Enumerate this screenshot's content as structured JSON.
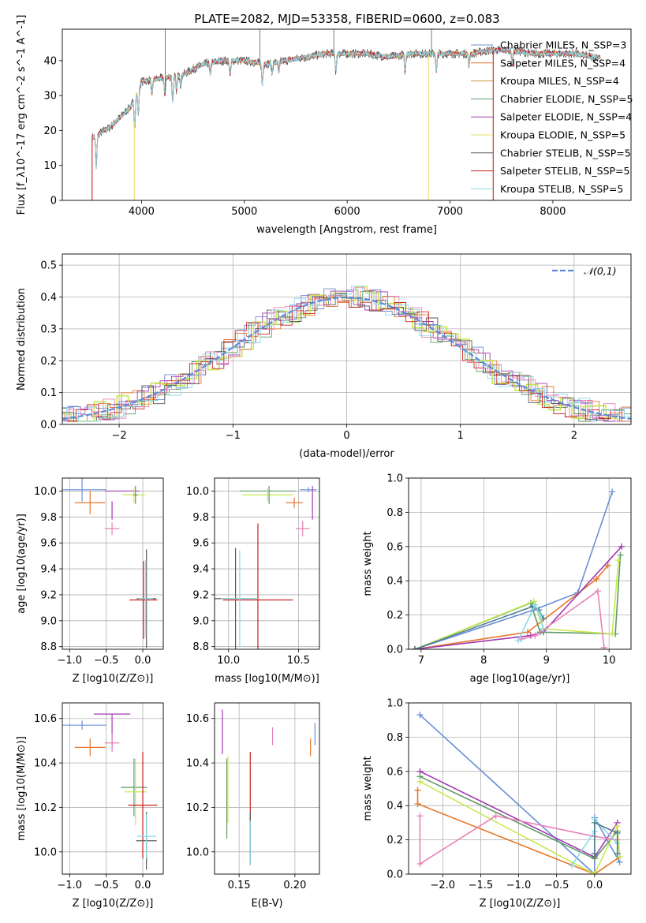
{
  "title": "PLATE=2082, MJD=53358, FIBERID=0600, z=0.083",
  "colors": {
    "Chabrier MILES": "#6b8fd6",
    "Salpeter MILES": "#e8772a",
    "Kroupa MILES": "#c49a3c",
    "Chabrier ELODIE": "#5f9a66",
    "Salpeter ELODIE": "#a03ab0",
    "Kroupa ELODIE": "#e6e070",
    "Chabrier STELIB": "#5a5a5a",
    "Salpeter STELIB": "#cc2020",
    "Kroupa STELIB": "#88d8e8",
    "Extra pink": "#e880b8",
    "Extra lime": "#c8e850",
    "Extra steel": "#4f7f8f",
    "Normal curve": "#5b8bd8"
  },
  "chart_data": [
    {
      "type": "line",
      "id": "spectrum",
      "xlabel": "wavelength [Angstrom, rest frame]",
      "ylabel": "Flux [f_λ10^-17 erg cm^-2 s^-1 A^-1]",
      "xlim": [
        3230,
        8760
      ],
      "ylim": [
        0,
        49
      ],
      "xticks": [
        4000,
        5000,
        6000,
        7000,
        8000
      ],
      "yticks": [
        0,
        10,
        20,
        30,
        40
      ],
      "grid": false,
      "legend_position": "right",
      "legend": [
        {
          "label": "Chabrier MILES, N_SSP=3",
          "color": "#6b8fd6"
        },
        {
          "label": "Salpeter MILES, N_SSP=4",
          "color": "#e8772a"
        },
        {
          "label": "Kroupa MILES, N_SSP=4",
          "color": "#c49a3c"
        },
        {
          "label": "Chabrier ELODIE, N_SSP=5",
          "color": "#5f9a66"
        },
        {
          "label": "Salpeter ELODIE, N_SSP=4",
          "color": "#a03ab0"
        },
        {
          "label": "Kroupa ELODIE, N_SSP=5",
          "color": "#e6e070"
        },
        {
          "label": "Chabrier STELIB, N_SSP=5",
          "color": "#5a5a5a"
        },
        {
          "label": "Salpeter STELIB, N_SSP=5",
          "color": "#cc2020"
        },
        {
          "label": "Kroupa STELIB, N_SSP=5",
          "color": "#88d8e8"
        }
      ],
      "continuum": [
        [
          3520,
          18
        ],
        [
          3700,
          21
        ],
        [
          3900,
          27
        ],
        [
          4000,
          34
        ],
        [
          4200,
          35
        ],
        [
          4400,
          36
        ],
        [
          4600,
          39
        ],
        [
          4800,
          40
        ],
        [
          5000,
          40
        ],
        [
          5200,
          39
        ],
        [
          5400,
          40
        ],
        [
          5600,
          41
        ],
        [
          5800,
          42
        ],
        [
          6000,
          42
        ],
        [
          6200,
          42
        ],
        [
          6400,
          41
        ],
        [
          6600,
          42
        ],
        [
          6800,
          42
        ],
        [
          7000,
          42
        ],
        [
          7200,
          42
        ],
        [
          7400,
          43
        ],
        [
          7600,
          43
        ],
        [
          7800,
          42
        ],
        [
          8000,
          42
        ],
        [
          8200,
          42
        ],
        [
          8400,
          41
        ]
      ],
      "features": [
        [
          3560,
          -9
        ],
        [
          3934,
          -8
        ],
        [
          3969,
          -7
        ],
        [
          4102,
          -4
        ],
        [
          4227,
          -5
        ],
        [
          4304,
          -7
        ],
        [
          4340,
          -4
        ],
        [
          4383,
          -3
        ],
        [
          4668,
          -3
        ],
        [
          4861,
          -4
        ],
        [
          5175,
          -6
        ],
        [
          5270,
          -3
        ],
        [
          5335,
          -3
        ],
        [
          5890,
          -5
        ],
        [
          6563,
          -5
        ],
        [
          6867,
          -5
        ],
        [
          7186,
          -3
        ],
        [
          7605,
          -4
        ]
      ],
      "spikes": [
        [
          4230,
          49
        ],
        [
          5150,
          49
        ],
        [
          5870,
          49
        ],
        [
          6820,
          49
        ]
      ],
      "drops": [
        {
          "x": 3520,
          "color": "#cc2020"
        },
        {
          "x": 3930,
          "color": "#e6e070"
        },
        {
          "x": 6790,
          "color": "#e6e070"
        },
        {
          "x": 7420,
          "color": "#cc2020"
        }
      ]
    },
    {
      "type": "histogram",
      "id": "residuals",
      "xlabel": "(data-model)/error",
      "ylabel": "Normed distribution",
      "xlim": [
        -2.5,
        2.5
      ],
      "ylim": [
        0,
        0.535
      ],
      "xticks": [
        -2,
        -1,
        0,
        1,
        2
      ],
      "yticks": [
        0.0,
        0.1,
        0.2,
        0.3,
        0.4,
        0.5
      ],
      "grid": true,
      "legend_position": "top-right",
      "curve": {
        "label": "𝒩(0,1)",
        "mu": 0,
        "sigma": 1,
        "color": "#5b8bd8"
      },
      "bin_width": 0.1,
      "series_colors": [
        "#6b8fd6",
        "#e8772a",
        "#5f9a66",
        "#a03ab0",
        "#c8e850",
        "#5a5a5a",
        "#cc2020",
        "#88d8e8",
        "#e880b8"
      ]
    },
    {
      "type": "scatter",
      "id": "z-vs-age",
      "xlabel": "Z [log10(Z/Z⊙)]",
      "ylabel": "age [log10(age/yr)]",
      "xlim": [
        -1.1,
        0.28
      ],
      "ylim": [
        8.78,
        10.1
      ],
      "xticks": [
        -1.0,
        -0.5,
        0.0
      ],
      "xtick_labels": [
        "−1.0",
        "−0.5",
        "0.0"
      ],
      "yticks": [
        8.8,
        9.0,
        9.2,
        9.4,
        9.6,
        9.8,
        10.0
      ],
      "grid": true,
      "points": [
        {
          "x": -0.83,
          "y": 10.01,
          "xerr": 0.33,
          "yerr": 0.09,
          "color": "#6b8fd6"
        },
        {
          "x": -0.72,
          "y": 9.91,
          "xerr": 0.21,
          "yerr": 0.09,
          "color": "#e8772a"
        },
        {
          "x": -0.28,
          "y": 10.0,
          "xerr": 0.24,
          "yerr": 0.0,
          "color": "#a03ab0"
        },
        {
          "x": -0.12,
          "y": 9.97,
          "xerr": 0.15,
          "yerr": 0.06,
          "color": "#c8e850"
        },
        {
          "x": -0.1,
          "y": 9.97,
          "xerr": 0.03,
          "yerr": 0.07,
          "color": "#5f9a66"
        },
        {
          "x": -0.42,
          "y": 9.71,
          "xerr": 0.1,
          "yerr": 0.05,
          "color": "#e880b8"
        },
        {
          "x": -0.42,
          "y": 9.85,
          "xerr": 0.0,
          "yerr": 0.07,
          "color": "#a03ab0"
        },
        {
          "x": 0.05,
          "y": 9.17,
          "xerr": 0.13,
          "yerr": 0.38,
          "color": "#5a5a5a"
        },
        {
          "x": 0.01,
          "y": 9.16,
          "xerr": 0.19,
          "yerr": 0.3,
          "color": "#cc2020"
        },
        {
          "x": 0.04,
          "y": 9.17,
          "xerr": 0.1,
          "yerr": 0.3,
          "color": "#88d8e8"
        }
      ]
    },
    {
      "type": "scatter",
      "id": "mass-vs-age",
      "xlabel": "mass [log10(M/M⊙)]",
      "xlim": [
        9.9,
        10.65
      ],
      "ylim": [
        8.78,
        10.1
      ],
      "xticks": [
        10.0,
        10.5
      ],
      "yticks": [
        8.8,
        9.0,
        9.2,
        9.4,
        9.6,
        9.8,
        10.0
      ],
      "grid": true,
      "points": [
        {
          "x": 10.28,
          "y": 10.0,
          "xerr": 0.2,
          "yerr": 0.0,
          "color": "#5f9a66"
        },
        {
          "x": 10.28,
          "y": 9.97,
          "xerr": 0.18,
          "yerr": 0.05,
          "color": "#c8e850"
        },
        {
          "x": 10.29,
          "y": 9.97,
          "xerr": 0.0,
          "yerr": 0.07,
          "color": "#5f9a66"
        },
        {
          "x": 10.57,
          "y": 10.01,
          "xerr": 0.06,
          "yerr": 0.02,
          "color": "#6b8fd6"
        },
        {
          "x": 10.47,
          "y": 9.91,
          "xerr": 0.06,
          "yerr": 0.04,
          "color": "#e8772a"
        },
        {
          "x": 10.6,
          "y": 9.91,
          "xerr": 0.0,
          "yerr": 0.13,
          "color": "#a03ab0"
        },
        {
          "x": 10.53,
          "y": 9.71,
          "xerr": 0.05,
          "yerr": 0.06,
          "color": "#e880b8"
        },
        {
          "x": 10.05,
          "y": 9.17,
          "xerr": 0.15,
          "yerr": 0.39,
          "color": "#5a5a5a"
        },
        {
          "x": 10.21,
          "y": 9.16,
          "xerr": 0.25,
          "yerr": 0.59,
          "color": "#cc2020"
        },
        {
          "x": 10.08,
          "y": 9.17,
          "xerr": 0.13,
          "yerr": 0.37,
          "color": "#88d8e8"
        }
      ]
    },
    {
      "type": "line",
      "id": "age-vs-mass-weight",
      "xlabel": "age [log10(age/yr)]",
      "ylabel": "mass weight",
      "xlim": [
        6.8,
        10.35
      ],
      "ylim": [
        0.0,
        1.0
      ],
      "xticks": [
        7,
        8,
        9,
        10
      ],
      "yticks": [
        0.0,
        0.2,
        0.4,
        0.6,
        0.8,
        1.0
      ],
      "grid": true,
      "series": [
        {
          "color": "#6b8fd6",
          "x": [
            6.9,
            8.8,
            9.5,
            10.05
          ],
          "y": [
            0.0,
            0.23,
            0.33,
            0.92
          ]
        },
        {
          "color": "#e8772a",
          "x": [
            6.9,
            8.7,
            9.8,
            9.98
          ],
          "y": [
            0.0,
            0.1,
            0.41,
            0.49
          ]
        },
        {
          "color": "#a03ab0",
          "x": [
            6.9,
            8.75,
            8.95,
            10.2
          ],
          "y": [
            0.0,
            0.08,
            0.1,
            0.6
          ]
        },
        {
          "color": "#5f9a66",
          "x": [
            6.9,
            8.75,
            8.9,
            10.1,
            10.18
          ],
          "y": [
            0.0,
            0.27,
            0.1,
            0.09,
            0.55
          ]
        },
        {
          "color": "#c8e850",
          "x": [
            6.9,
            8.8,
            8.95,
            10.05,
            10.15
          ],
          "y": [
            0.0,
            0.28,
            0.12,
            0.09,
            0.52
          ]
        },
        {
          "color": "#e880b8",
          "x": [
            8.6,
            8.82,
            9.82,
            9.92
          ],
          "y": [
            0.06,
            0.08,
            0.34,
            0.01
          ]
        },
        {
          "color": "#4f7f8f",
          "x": [
            6.9,
            8.78,
            8.88,
            8.95
          ],
          "y": [
            0.0,
            0.25,
            0.23,
            0.18
          ]
        },
        {
          "color": "#88d8e8",
          "x": [
            8.55,
            8.82,
            8.9,
            8.95
          ],
          "y": [
            0.05,
            0.26,
            0.2,
            0.12
          ]
        }
      ]
    },
    {
      "type": "scatter",
      "id": "z-vs-mass",
      "xlabel": "Z [log10(Z/Z⊙)]",
      "ylabel": "mass [log10(M/M⊙)]",
      "xlim": [
        -1.1,
        0.28
      ],
      "ylim": [
        9.9,
        10.67
      ],
      "xticks": [
        -1.0,
        -0.5,
        0.0
      ],
      "xtick_labels": [
        "−1.0",
        "−0.5",
        "0.0"
      ],
      "yticks": [
        10.0,
        10.2,
        10.4,
        10.6
      ],
      "grid": true,
      "points": [
        {
          "x": -0.83,
          "y": 10.57,
          "xerr": 0.33,
          "yerr": 0.02,
          "color": "#6b8fd6"
        },
        {
          "x": -0.72,
          "y": 10.47,
          "xerr": 0.21,
          "yerr": 0.04,
          "color": "#e8772a"
        },
        {
          "x": -0.42,
          "y": 10.62,
          "xerr": 0.25,
          "yerr": 0.0,
          "color": "#a03ab0"
        },
        {
          "x": -0.42,
          "y": 10.54,
          "xerr": 0.0,
          "yerr": 0.08,
          "color": "#a03ab0"
        },
        {
          "x": -0.42,
          "y": 10.49,
          "xerr": 0.1,
          "yerr": 0.04,
          "color": "#e880b8"
        },
        {
          "x": -0.12,
          "y": 10.29,
          "xerr": 0.18,
          "yerr": 0.13,
          "color": "#5f9a66"
        },
        {
          "x": -0.1,
          "y": 10.27,
          "xerr": 0.15,
          "yerr": 0.15,
          "color": "#c8e850"
        },
        {
          "x": 0.0,
          "y": 10.21,
          "xerr": 0.2,
          "yerr": 0.24,
          "color": "#cc2020"
        },
        {
          "x": 0.05,
          "y": 10.05,
          "xerr": 0.14,
          "yerr": 0.13,
          "color": "#5a5a5a"
        },
        {
          "x": 0.05,
          "y": 10.07,
          "xerr": 0.13,
          "yerr": 0.1,
          "color": "#88d8e8"
        }
      ]
    },
    {
      "type": "scatter",
      "id": "ebv-vs-mass",
      "xlabel": "E(B-V)",
      "xlim": [
        0.128,
        0.222
      ],
      "ylim": [
        9.9,
        10.67
      ],
      "xticks": [
        0.15,
        0.2
      ],
      "xtick_labels": [
        "0.15",
        "0.20"
      ],
      "yticks": [
        10.0,
        10.2,
        10.4,
        10.6
      ],
      "grid": true,
      "points": [
        {
          "x": 0.135,
          "y": 10.54,
          "xerr": 0.0,
          "yerr": 0.1,
          "color": "#a03ab0"
        },
        {
          "x": 0.139,
          "y": 10.24,
          "xerr": 0.0,
          "yerr": 0.18,
          "color": "#5f9a66"
        },
        {
          "x": 0.14,
          "y": 10.28,
          "xerr": 0.0,
          "yerr": 0.15,
          "color": "#c8e850"
        },
        {
          "x": 0.16,
          "y": 10.21,
          "xerr": 0.0,
          "yerr": 0.24,
          "color": "#cc2020"
        },
        {
          "x": 0.16,
          "y": 10.06,
          "xerr": 0.0,
          "yerr": 0.12,
          "color": "#5a5a5a"
        },
        {
          "x": 0.16,
          "y": 10.04,
          "xerr": 0.0,
          "yerr": 0.1,
          "color": "#88d8e8"
        },
        {
          "x": 0.18,
          "y": 10.52,
          "xerr": 0.0,
          "yerr": 0.04,
          "color": "#e880b8"
        },
        {
          "x": 0.214,
          "y": 10.47,
          "xerr": 0.0,
          "yerr": 0.04,
          "color": "#e8772a"
        },
        {
          "x": 0.218,
          "y": 10.53,
          "xerr": 0.0,
          "yerr": 0.05,
          "color": "#6b8fd6"
        }
      ]
    },
    {
      "type": "line",
      "id": "z-vs-mass-weight",
      "xlabel": "Z [log10(Z/Z⊙)]",
      "ylabel": "mass weight",
      "xlim": [
        -2.45,
        0.48
      ],
      "ylim": [
        0.0,
        1.0
      ],
      "xticks": [
        -2.0,
        -1.5,
        -1.0,
        -0.5,
        0.0
      ],
      "xtick_labels": [
        "−2.0",
        "−1.5",
        "−1.0",
        "−0.5",
        "0.0"
      ],
      "yticks": [
        0.0,
        0.2,
        0.4,
        0.6,
        0.8,
        1.0
      ],
      "grid": true,
      "series": [
        {
          "color": "#6b8fd6",
          "x": [
            -2.3,
            0.0,
            0.0,
            0.33
          ],
          "y": [
            0.93,
            0.0,
            0.33,
            0.07
          ]
        },
        {
          "color": "#e8772a",
          "x": [
            -2.33,
            -2.33,
            0.0,
            0.33
          ],
          "y": [
            0.49,
            0.41,
            0.0,
            0.1
          ]
        },
        {
          "color": "#a03ab0",
          "x": [
            -2.3,
            0.0,
            0.3
          ],
          "y": [
            0.6,
            0.1,
            0.3
          ]
        },
        {
          "color": "#5f9a66",
          "x": [
            -2.3,
            0.0,
            0.3,
            0.33
          ],
          "y": [
            0.57,
            0.09,
            0.25,
            0.1
          ]
        },
        {
          "color": "#c8e850",
          "x": [
            -2.3,
            0.0,
            0.3,
            0.33
          ],
          "y": [
            0.54,
            0.0,
            0.28,
            0.1
          ]
        },
        {
          "color": "#e880b8",
          "x": [
            -2.3,
            -2.3,
            -1.3,
            0.0,
            0.3
          ],
          "y": [
            0.34,
            0.06,
            0.34,
            0.22,
            0.2
          ]
        },
        {
          "color": "#88d8e8",
          "x": [
            -0.3,
            0.0,
            0.0,
            0.3
          ],
          "y": [
            0.05,
            0.25,
            0.32,
            0.18
          ]
        },
        {
          "color": "#4f7f8f",
          "x": [
            0.0,
            0.0,
            0.3,
            0.3
          ],
          "y": [
            0.12,
            0.3,
            0.24,
            0.12
          ]
        }
      ]
    }
  ]
}
